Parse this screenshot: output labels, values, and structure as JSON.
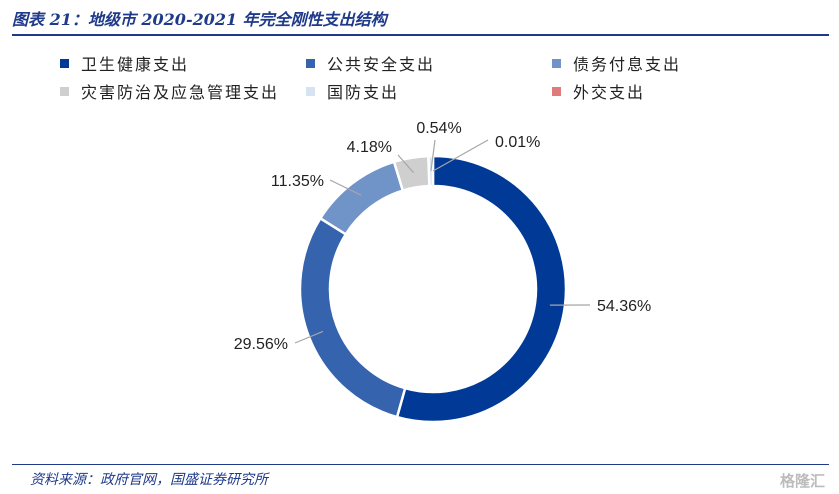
{
  "figure": {
    "title": "图表 21：地级市 2020-2021 年完全刚性支出结构",
    "source": "资料来源：政府官网，国盛证券研究所",
    "watermark": "格隆汇"
  },
  "chart_data": {
    "type": "pie",
    "subtype": "donut",
    "title": "",
    "categories": [
      "卫生健康支出",
      "公共安全支出",
      "债务付息支出",
      "灾害防治及应急管理支出",
      "国防支出",
      "外交支出"
    ],
    "values": [
      54.36,
      29.56,
      11.35,
      4.18,
      0.54,
      0.01
    ],
    "labels": [
      "54.36%",
      "29.56%",
      "11.35%",
      "4.18%",
      "0.54%",
      "0.01%"
    ],
    "colors": [
      "#003a96",
      "#3563ad",
      "#7093c8",
      "#cfcfcf",
      "#d8e3f1",
      "#e07b7b"
    ],
    "legend_position": "top"
  }
}
